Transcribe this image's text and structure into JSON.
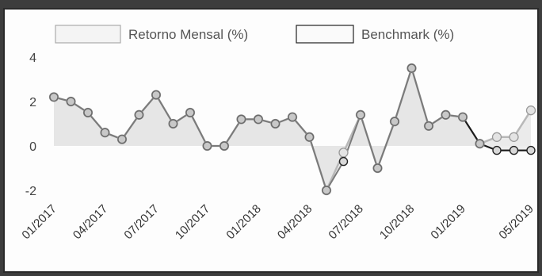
{
  "chart_data": {
    "type": "line",
    "legend": [
      "Retorno Mensal (%)",
      "Benchmark (%)"
    ],
    "legend_position": "top",
    "x": [
      "01/2017",
      "02/2017",
      "03/2017",
      "04/2017",
      "05/2017",
      "06/2017",
      "07/2017",
      "08/2017",
      "09/2017",
      "10/2017",
      "11/2017",
      "12/2017",
      "01/2018",
      "02/2018",
      "03/2018",
      "04/2018",
      "05/2018",
      "06/2018",
      "07/2018",
      "08/2018",
      "09/2018",
      "10/2018",
      "11/2018",
      "12/2018",
      "01/2019",
      "02/2019",
      "03/2019",
      "04/2019",
      "05/2019"
    ],
    "x_tick_labels": [
      "01/2017",
      "04/2017",
      "07/2017",
      "10/2017",
      "01/2018",
      "04/2018",
      "07/2018",
      "10/2018",
      "01/2019",
      "05/2019"
    ],
    "series": [
      {
        "name": "Retorno Mensal (%)",
        "values": [
          2.2,
          2.0,
          1.5,
          0.6,
          0.3,
          1.4,
          2.3,
          1.0,
          1.5,
          0.0,
          0.0,
          1.2,
          1.2,
          1.0,
          1.3,
          0.4,
          -2.0,
          -0.3,
          1.4,
          -1.0,
          1.1,
          3.5,
          0.9,
          1.4,
          1.3,
          0.1,
          0.4,
          0.4,
          1.6
        ]
      },
      {
        "name": "Benchmark (%)",
        "values": [
          2.2,
          2.0,
          1.5,
          0.6,
          0.3,
          1.4,
          2.3,
          1.0,
          1.5,
          0.0,
          0.0,
          1.2,
          1.2,
          1.0,
          1.3,
          0.4,
          -2.0,
          -0.7,
          1.4,
          -1.0,
          1.1,
          3.5,
          0.9,
          1.4,
          1.3,
          0.1,
          -0.2,
          -0.2,
          -0.2
        ]
      }
    ],
    "ylim": [
      -2,
      4
    ],
    "y_ticks": [
      -2,
      0,
      2,
      4
    ],
    "grid": false,
    "colors": {
      "retorno_line": "#b8b8b8",
      "retorno_fill": "#ebebeb",
      "benchmark_line": "#1a1a1a",
      "point_fill": "#c8c8c8",
      "point_stroke": "#6a6a6a"
    }
  }
}
